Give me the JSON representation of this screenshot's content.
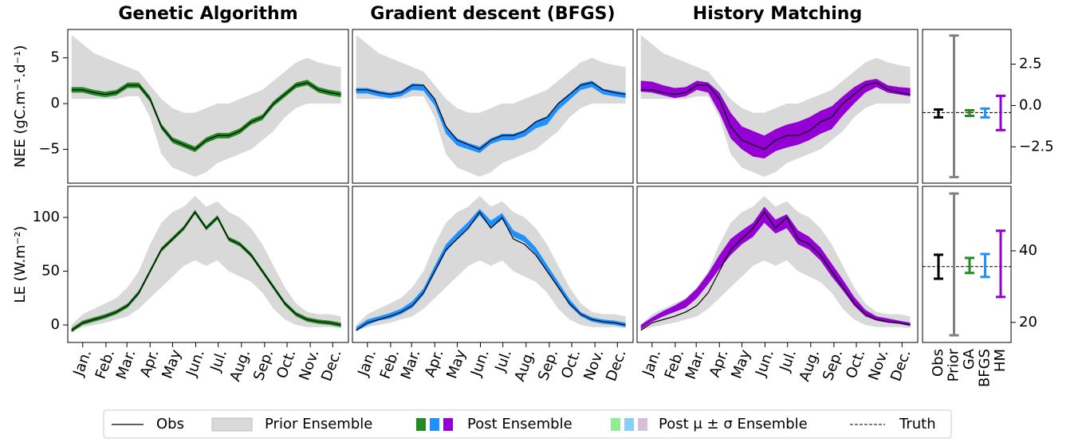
{
  "titles": [
    "Genetic Algorithm",
    "Gradient descent (BFGS)",
    "History Matching"
  ],
  "legend": [
    "Obs",
    "Prior Ensemble",
    "Post Ensemble",
    "Post μ ± σ Ensemble",
    "Truth"
  ],
  "chart_data": [
    {
      "type": "ensemble",
      "ylabel": "NEE (gC.m⁻¹.d⁻¹)",
      "x": [
        0,
        15,
        30,
        45,
        60,
        75,
        90,
        105,
        120,
        135,
        150,
        165,
        180,
        195,
        210,
        225,
        240,
        255,
        270,
        285,
        300,
        315,
        330,
        345,
        360
      ],
      "xlim": [
        -5,
        370
      ],
      "ylim": [
        -8.7,
        8.1
      ],
      "yticks": [
        {
          "value": -5,
          "label": "−5"
        },
        0,
        5
      ],
      "obs": [
        1.5,
        1.5,
        1.2,
        1.0,
        1.2,
        2.0,
        2.0,
        0.5,
        -2.5,
        -4.0,
        -4.5,
        -5.0,
        -4.0,
        -3.5,
        -3.5,
        -3.0,
        -2.0,
        -1.5,
        0.0,
        1.0,
        2.0,
        2.3,
        1.5,
        1.2,
        1.0
      ],
      "prior_lower": [
        0.5,
        0.5,
        0.5,
        0.5,
        0.5,
        0.8,
        0.8,
        -1.5,
        -5.5,
        -7.0,
        -7.5,
        -8.0,
        -7.5,
        -6.5,
        -6.0,
        -5.5,
        -5.0,
        -4.0,
        -3.0,
        -1.5,
        -0.5,
        0.0,
        0.0,
        0.0,
        0.0
      ],
      "prior_upper": [
        7.5,
        6.5,
        5.5,
        5.0,
        4.5,
        4.0,
        3.5,
        2.0,
        0.5,
        -0.5,
        -1.0,
        -1.0,
        -0.5,
        0.0,
        0.0,
        0.5,
        1.0,
        1.5,
        2.5,
        3.5,
        4.5,
        5.0,
        4.5,
        4.2,
        4.0
      ],
      "series": [
        {
          "name": "GA",
          "color": "#228b22",
          "lower": [
            1.2,
            1.2,
            0.9,
            0.7,
            0.9,
            1.7,
            1.7,
            0.2,
            -2.8,
            -4.3,
            -4.8,
            -5.3,
            -4.3,
            -3.8,
            -3.8,
            -3.3,
            -2.3,
            -1.8,
            -0.3,
            0.7,
            1.7,
            2.0,
            1.2,
            0.9,
            0.7
          ],
          "upper": [
            1.8,
            1.8,
            1.5,
            1.3,
            1.5,
            2.3,
            2.3,
            0.8,
            -2.2,
            -3.7,
            -4.2,
            -4.7,
            -3.7,
            -3.2,
            -3.2,
            -2.7,
            -1.7,
            -1.2,
            0.3,
            1.3,
            2.3,
            2.6,
            1.8,
            1.5,
            1.3
          ]
        },
        {
          "name": "BFGS",
          "color": "#1e90ff",
          "lower": [
            1.1,
            1.1,
            0.8,
            0.6,
            0.8,
            1.5,
            1.4,
            -0.2,
            -3.3,
            -4.6,
            -5.0,
            -5.4,
            -4.4,
            -4.0,
            -4.0,
            -3.6,
            -2.7,
            -2.3,
            -0.7,
            0.4,
            1.5,
            1.8,
            1.0,
            0.8,
            0.6
          ],
          "upper": [
            1.7,
            1.7,
            1.4,
            1.2,
            1.4,
            2.2,
            2.1,
            0.5,
            -2.5,
            -3.8,
            -4.3,
            -4.7,
            -3.8,
            -3.3,
            -3.3,
            -2.9,
            -1.9,
            -1.4,
            0.1,
            1.1,
            2.2,
            2.5,
            1.6,
            1.4,
            1.2
          ]
        },
        {
          "name": "HM",
          "color": "#9400d3",
          "lower": [
            1.3,
            1.2,
            0.9,
            0.6,
            0.8,
            1.5,
            1.2,
            -1.0,
            -3.8,
            -5.0,
            -5.8,
            -6.0,
            -5.2,
            -4.8,
            -4.5,
            -4.0,
            -3.3,
            -2.8,
            -1.3,
            0.0,
            1.2,
            1.8,
            1.2,
            1.0,
            0.8
          ],
          "upper": [
            2.5,
            2.4,
            2.0,
            1.7,
            1.8,
            2.5,
            2.3,
            1.2,
            -1.0,
            -2.5,
            -3.0,
            -3.5,
            -2.8,
            -2.3,
            -2.0,
            -1.5,
            -0.8,
            -0.3,
            0.8,
            1.8,
            2.5,
            2.7,
            2.0,
            1.8,
            1.7
          ]
        }
      ]
    },
    {
      "type": "errorbar",
      "categories": [
        "Obs",
        "Prior",
        "GA",
        "BFGS",
        "HM"
      ],
      "colors": [
        "#000000",
        "#808080",
        "#228b22",
        "#1e90ff",
        "#9400d3"
      ],
      "lower": [
        -0.72,
        -4.33,
        -0.63,
        -0.72,
        -1.49
      ],
      "upper": [
        -0.24,
        4.23,
        -0.29,
        -0.19,
        0.58
      ],
      "truth": -0.43,
      "ylim": [
        -4.7,
        4.6
      ],
      "yticks": [
        {
          "value": -2.5,
          "label": "−2.5"
        },
        {
          "value": 0,
          "label": "0.0"
        },
        2.5
      ]
    },
    {
      "type": "ensemble",
      "ylabel": "LE (W.m⁻²)",
      "x": [
        0,
        15,
        30,
        45,
        60,
        75,
        90,
        105,
        120,
        135,
        150,
        165,
        180,
        195,
        210,
        225,
        240,
        255,
        270,
        285,
        300,
        315,
        330,
        345,
        360
      ],
      "xlim": [
        -5,
        370
      ],
      "ylim": [
        -16.3,
        128.9
      ],
      "xticks": [
        {
          "value": 15,
          "label": "Jan."
        },
        {
          "value": 46,
          "label": "Feb."
        },
        {
          "value": 74,
          "label": "Mar."
        },
        {
          "value": 105,
          "label": "Apr."
        },
        {
          "value": 135,
          "label": "May"
        },
        {
          "value": 166,
          "label": "Jun."
        },
        {
          "value": 196,
          "label": "Jul."
        },
        {
          "value": 227,
          "label": "Aug."
        },
        {
          "value": 258,
          "label": "Sep."
        },
        {
          "value": 288,
          "label": "Oct."
        },
        {
          "value": 319,
          "label": "Nov."
        },
        {
          "value": 349,
          "label": "Dec."
        }
      ],
      "yticks": [
        0,
        50,
        100
      ],
      "obs": [
        -5,
        2,
        5,
        8,
        12,
        18,
        30,
        50,
        70,
        80,
        90,
        105,
        90,
        100,
        80,
        75,
        65,
        50,
        35,
        20,
        10,
        5,
        3,
        2,
        0
      ],
      "prior_lower": [
        -5,
        -2,
        0,
        2,
        5,
        8,
        15,
        25,
        35,
        45,
        55,
        60,
        55,
        60,
        50,
        45,
        40,
        30,
        15,
        5,
        0,
        -2,
        -2,
        -2,
        -3
      ],
      "prior_upper": [
        0,
        10,
        15,
        20,
        25,
        35,
        50,
        75,
        95,
        105,
        110,
        120,
        110,
        115,
        105,
        100,
        90,
        75,
        55,
        35,
        20,
        12,
        10,
        10,
        8
      ],
      "series": [
        {
          "name": "GA",
          "color": "#228b22",
          "lower": [
            -7,
            0,
            3,
            6,
            10,
            16,
            28,
            48,
            68,
            78,
            88,
            103,
            88,
            98,
            78,
            73,
            63,
            48,
            33,
            18,
            8,
            3,
            1,
            0,
            -2
          ],
          "upper": [
            -3,
            4,
            7,
            10,
            14,
            20,
            32,
            52,
            72,
            82,
            92,
            107,
            92,
            102,
            82,
            77,
            67,
            52,
            37,
            22,
            12,
            7,
            5,
            4,
            2
          ]
        },
        {
          "name": "BFGS",
          "color": "#1e90ff",
          "lower": [
            -6,
            0,
            4,
            6,
            10,
            16,
            28,
            48,
            68,
            80,
            90,
            102,
            90,
            98,
            82,
            77,
            66,
            50,
            34,
            18,
            8,
            3,
            1,
            0,
            -2
          ],
          "upper": [
            -2,
            5,
            8,
            11,
            15,
            22,
            34,
            55,
            75,
            86,
            96,
            108,
            97,
            104,
            88,
            83,
            72,
            56,
            40,
            24,
            12,
            7,
            5,
            4,
            2
          ]
        },
        {
          "name": "HM",
          "color": "#9400d3",
          "lower": [
            -4,
            3,
            8,
            12,
            16,
            25,
            38,
            52,
            65,
            75,
            82,
            95,
            85,
            90,
            75,
            70,
            60,
            45,
            32,
            18,
            8,
            4,
            2,
            1,
            -1
          ],
          "upper": [
            0,
            7,
            13,
            18,
            24,
            34,
            48,
            65,
            80,
            88,
            95,
            110,
            98,
            103,
            88,
            82,
            72,
            57,
            42,
            26,
            14,
            8,
            6,
            4,
            2
          ]
        }
      ]
    },
    {
      "type": "errorbar",
      "categories": [
        "Obs",
        "Prior",
        "GA",
        "BFGS",
        "HM"
      ],
      "colors": [
        "#000000",
        "#808080",
        "#228b22",
        "#1e90ff",
        "#9400d3"
      ],
      "lower": [
        32.2,
        16.4,
        33.8,
        32.7,
        27.1
      ],
      "upper": [
        38.9,
        56.0,
        38.0,
        39.1,
        45.6
      ],
      "truth": 35.6,
      "ylim": [
        14.4,
        58
      ],
      "yticks": [
        20,
        40
      ]
    }
  ]
}
